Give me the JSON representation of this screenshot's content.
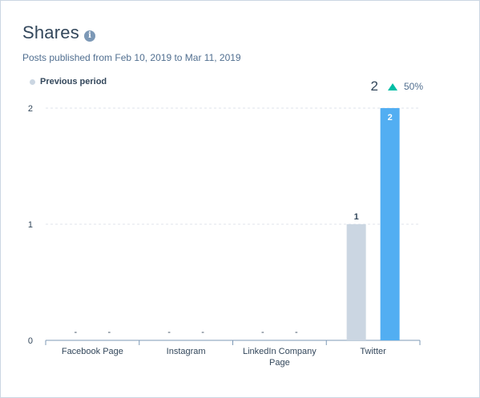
{
  "header": {
    "title": "Shares",
    "info_icon": "info-icon",
    "subtitle": "Posts published from Feb 10, 2019 to Mar 11, 2019"
  },
  "legend": {
    "items": [
      {
        "label": "Previous period",
        "color": "#cbd6e2"
      }
    ]
  },
  "summary": {
    "value": "2",
    "trend_icon": "triangle-up-icon",
    "change": "50%",
    "trend_color": "#00bda5"
  },
  "chart_data": {
    "type": "bar",
    "categories": [
      "Facebook Page",
      "Instagram",
      "LinkedIn Company Page",
      "Twitter"
    ],
    "category_lines": [
      [
        "Facebook Page"
      ],
      [
        "Instagram"
      ],
      [
        "LinkedIn Company",
        "Page"
      ],
      [
        "Twitter"
      ]
    ],
    "series": [
      {
        "name": "Previous period",
        "values": [
          null,
          null,
          null,
          1
        ],
        "labels": [
          "-",
          "-",
          "-",
          "1"
        ],
        "color": "#cbd6e2"
      },
      {
        "name": "",
        "values": [
          null,
          null,
          null,
          2
        ],
        "labels": [
          "-",
          "-",
          "-",
          "2"
        ],
        "color": "#52aef2"
      }
    ],
    "yticks": [
      0,
      1,
      2
    ],
    "ylim": [
      0,
      2
    ],
    "grid": true,
    "legend_position": "top-left"
  }
}
